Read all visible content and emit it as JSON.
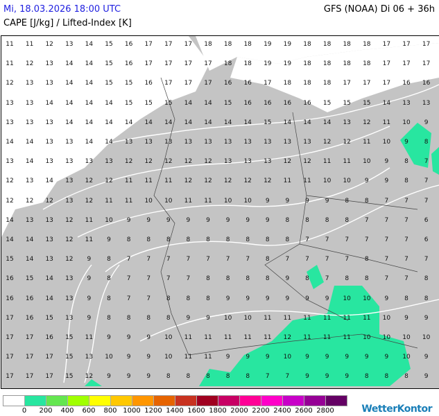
{
  "header": {
    "datetime": "Mi, 18.03.2026 18:00 UTC",
    "model": "GFS (NOAA) Di 06 + 36h",
    "parameter": "CAPE [J/kg] / Lifted-Index [K]"
  },
  "colors": {
    "land": "#c4c4c4",
    "sea": "#ffffff",
    "cape_200": "#28e6a0",
    "contour": "#ffffff",
    "datetime_text": "#2020e0",
    "logo": "#1a7fb8"
  },
  "legend": {
    "colors": [
      "#ffffff",
      "#28e6a0",
      "#64e650",
      "#a0ff00",
      "#ffff00",
      "#ffc800",
      "#ff9600",
      "#e66400",
      "#c83220",
      "#a00020",
      "#c80064",
      "#ff0096",
      "#ff00c8",
      "#c800c8",
      "#960096",
      "#640064"
    ],
    "labels": [
      "0",
      "200",
      "400",
      "600",
      "800",
      "1000",
      "1200",
      "1400",
      "1600",
      "1800",
      "2000",
      "2200",
      "2400",
      "2600",
      "2800"
    ]
  },
  "logo": {
    "text": "WetterKontor"
  },
  "map": {
    "lifted_index_grid": [
      [
        11,
        11,
        12,
        13,
        14,
        15,
        16,
        17,
        17,
        17,
        18,
        18,
        18,
        19,
        19,
        18,
        18,
        18,
        18,
        17,
        17,
        17
      ],
      [
        11,
        12,
        13,
        14,
        14,
        15,
        16,
        17,
        17,
        17,
        17,
        18,
        18,
        19,
        19,
        18,
        18,
        18,
        18,
        17,
        17,
        17
      ],
      [
        12,
        13,
        13,
        14,
        14,
        15,
        15,
        16,
        17,
        17,
        17,
        16,
        16,
        17,
        18,
        18,
        18,
        17,
        17,
        17,
        16,
        16
      ],
      [
        13,
        13,
        14,
        14,
        14,
        14,
        15,
        15,
        15,
        14,
        14,
        15,
        16,
        16,
        16,
        16,
        15,
        15,
        15,
        14,
        13,
        13
      ],
      [
        13,
        13,
        13,
        14,
        14,
        14,
        14,
        14,
        14,
        14,
        14,
        14,
        14,
        15,
        14,
        14,
        14,
        13,
        12,
        11,
        10,
        9
      ],
      [
        14,
        14,
        13,
        13,
        14,
        14,
        13,
        13,
        13,
        13,
        13,
        13,
        13,
        13,
        13,
        13,
        12,
        12,
        11,
        10,
        9,
        8
      ],
      [
        13,
        14,
        13,
        13,
        13,
        13,
        12,
        12,
        12,
        12,
        12,
        13,
        13,
        13,
        12,
        12,
        11,
        11,
        10,
        9,
        8,
        7
      ],
      [
        12,
        13,
        14,
        13,
        12,
        12,
        11,
        11,
        11,
        12,
        12,
        12,
        12,
        12,
        11,
        11,
        10,
        10,
        9,
        9,
        8,
        7
      ],
      [
        12,
        12,
        12,
        13,
        12,
        11,
        11,
        10,
        10,
        11,
        11,
        10,
        10,
        9,
        9,
        9,
        9,
        8,
        8,
        7,
        7,
        7
      ],
      [
        14,
        13,
        13,
        12,
        11,
        10,
        9,
        9,
        9,
        9,
        9,
        9,
        9,
        9,
        8,
        8,
        8,
        8,
        7,
        7,
        7,
        6
      ],
      [
        14,
        14,
        13,
        12,
        11,
        9,
        8,
        8,
        8,
        8,
        8,
        8,
        8,
        8,
        8,
        7,
        7,
        7,
        7,
        7,
        7,
        6
      ],
      [
        15,
        14,
        13,
        12,
        9,
        8,
        7,
        7,
        7,
        7,
        7,
        7,
        7,
        8,
        7,
        7,
        7,
        7,
        8,
        7,
        7,
        7
      ],
      [
        16,
        15,
        14,
        13,
        9,
        8,
        7,
        7,
        7,
        7,
        8,
        8,
        8,
        8,
        9,
        8,
        7,
        8,
        8,
        7,
        7,
        8
      ],
      [
        16,
        16,
        14,
        13,
        9,
        8,
        7,
        7,
        8,
        8,
        8,
        9,
        9,
        9,
        9,
        9,
        9,
        10,
        10,
        9,
        8,
        8
      ],
      [
        17,
        16,
        15,
        13,
        9,
        8,
        8,
        8,
        8,
        9,
        9,
        10,
        10,
        11,
        11,
        11,
        11,
        11,
        11,
        10,
        9,
        9
      ],
      [
        17,
        17,
        16,
        15,
        11,
        9,
        9,
        9,
        10,
        11,
        11,
        11,
        11,
        11,
        12,
        11,
        11,
        11,
        10,
        10,
        10,
        10
      ],
      [
        17,
        17,
        17,
        15,
        13,
        10,
        9,
        9,
        10,
        11,
        11,
        9,
        9,
        9,
        10,
        9,
        9,
        9,
        9,
        9,
        10,
        9
      ],
      [
        17,
        17,
        17,
        15,
        12,
        9,
        9,
        9,
        8,
        8,
        8,
        8,
        8,
        7,
        7,
        9,
        9,
        9,
        8,
        8,
        8,
        9
      ]
    ]
  }
}
